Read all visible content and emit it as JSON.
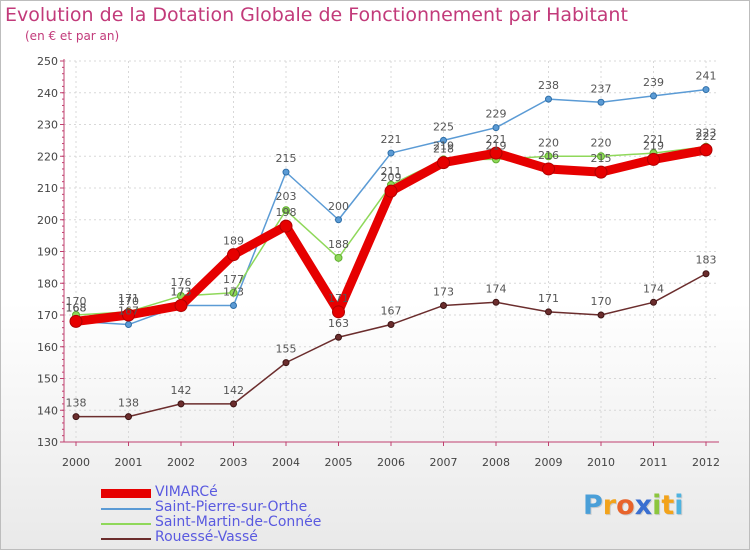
{
  "header": {
    "title": "Evolution de la Dotation Globale de Fonctionnement par Habitant",
    "subtitle": "(en € et par an)"
  },
  "logo": {
    "text": "Proxiti",
    "letters": [
      {
        "ch": "P",
        "color": "#4a9fd8"
      },
      {
        "ch": "r",
        "color": "#f2a31b"
      },
      {
        "ch": "o",
        "color": "#e8632b"
      },
      {
        "ch": "x",
        "color": "#3a6fd1"
      },
      {
        "ch": "i",
        "color": "#8cc63e"
      },
      {
        "ch": "t",
        "color": "#f2a31b"
      },
      {
        "ch": "i",
        "color": "#4fb3e0"
      }
    ]
  },
  "chart_data": {
    "type": "line",
    "title": "Evolution de la Dotation Globale de Fonctionnement par Habitant",
    "subtitle": "(en € et par an)",
    "x": [
      "2000",
      "2001",
      "2002",
      "2003",
      "2004",
      "2005",
      "2006",
      "2007",
      "2008",
      "2009",
      "2010",
      "2011",
      "2012"
    ],
    "ylim": [
      130,
      250
    ],
    "yticks": [
      130,
      140,
      150,
      160,
      170,
      180,
      190,
      200,
      210,
      220,
      230,
      240,
      250
    ],
    "grid": true,
    "legend_position": "bottom-left",
    "series": [
      {
        "name": "VIMARCé",
        "color": "#e60000",
        "values": [
          168,
          170,
          173,
          189,
          198,
          171,
          209,
          218,
          221,
          216,
          215,
          219,
          222
        ]
      },
      {
        "name": "Saint-Pierre-sur-Orthe",
        "color": "#5b9bd5",
        "values": [
          168,
          167,
          173,
          173,
          215,
          200,
          221,
          225,
          229,
          238,
          237,
          239,
          241
        ]
      },
      {
        "name": "Saint-Martin-de-Connée",
        "color": "#8fd85a",
        "values": [
          170,
          171,
          176,
          177,
          203,
          188,
          211,
          219,
          219,
          220,
          220,
          221,
          223
        ]
      },
      {
        "name": "Rouessé-Vassé",
        "color": "#6b2d2d",
        "values": [
          138,
          138,
          142,
          142,
          155,
          163,
          167,
          173,
          174,
          171,
          170,
          174,
          183
        ]
      }
    ]
  }
}
